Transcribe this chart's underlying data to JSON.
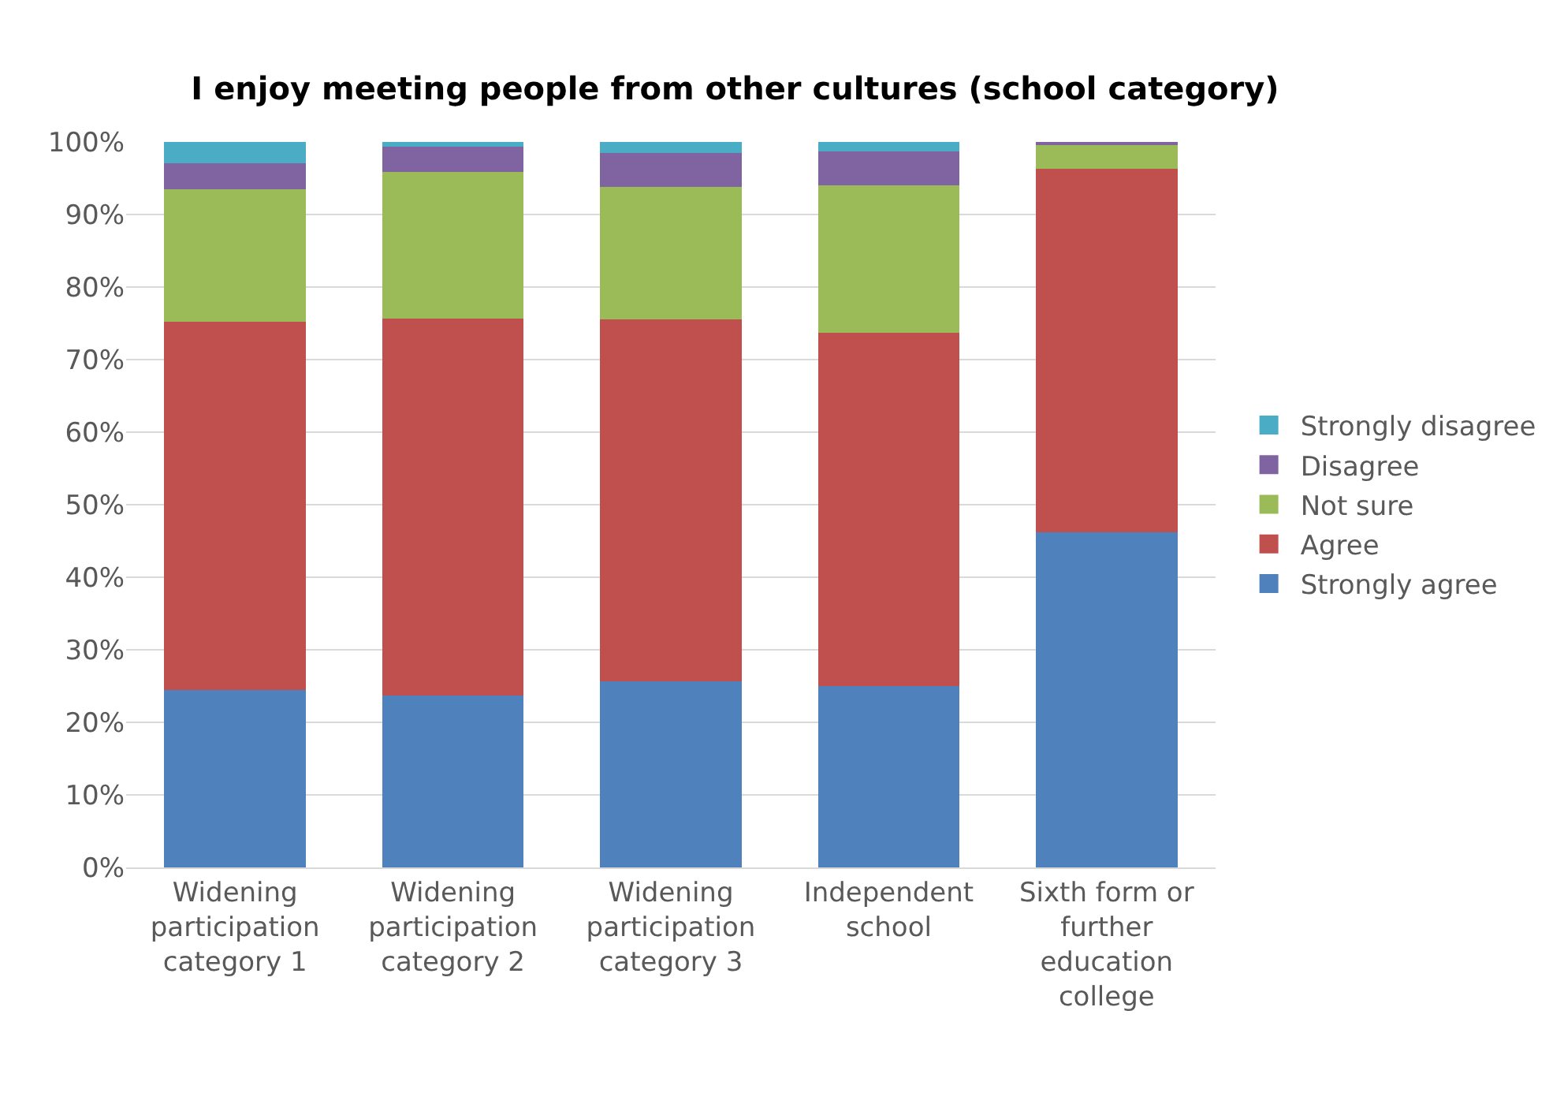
{
  "chart_data": {
    "type": "bar",
    "stacked": true,
    "title": "I enjoy meeting people from other cultures (school category)",
    "categories": [
      "Widening participation category 1",
      "Widening participation category 2",
      "Widening participation category 3",
      "Independent school",
      "Sixth form or further education college"
    ],
    "series": [
      {
        "name": "Strongly agree",
        "color": "#4f81bd",
        "values": [
          24.5,
          23.7,
          25.6,
          25.0,
          46.2
        ]
      },
      {
        "name": "Agree",
        "color": "#c0504d",
        "values": [
          50.7,
          51.9,
          49.9,
          48.7,
          50.1
        ]
      },
      {
        "name": "Not sure",
        "color": "#9bbb59",
        "values": [
          18.3,
          20.3,
          18.3,
          20.3,
          3.3
        ]
      },
      {
        "name": "Disagree",
        "color": "#8064a2",
        "values": [
          3.6,
          3.4,
          4.7,
          4.7,
          0.4
        ]
      },
      {
        "name": "Strongly disagree",
        "color": "#4bacc6",
        "values": [
          2.9,
          0.7,
          1.5,
          1.3,
          0
        ]
      }
    ],
    "ylim": [
      0,
      100
    ],
    "yticks": [
      {
        "value": 0,
        "label": "0%"
      },
      {
        "value": 10,
        "label": "10%"
      },
      {
        "value": 20,
        "label": "20%"
      },
      {
        "value": 30,
        "label": "30%"
      },
      {
        "value": 40,
        "label": "40%"
      },
      {
        "value": 50,
        "label": "50%"
      },
      {
        "value": 60,
        "label": "60%"
      },
      {
        "value": 70,
        "label": "70%"
      },
      {
        "value": 80,
        "label": "80%"
      },
      {
        "value": 90,
        "label": "90%"
      },
      {
        "value": 100,
        "label": "100%"
      }
    ],
    "grid": "y",
    "legend": "right"
  }
}
